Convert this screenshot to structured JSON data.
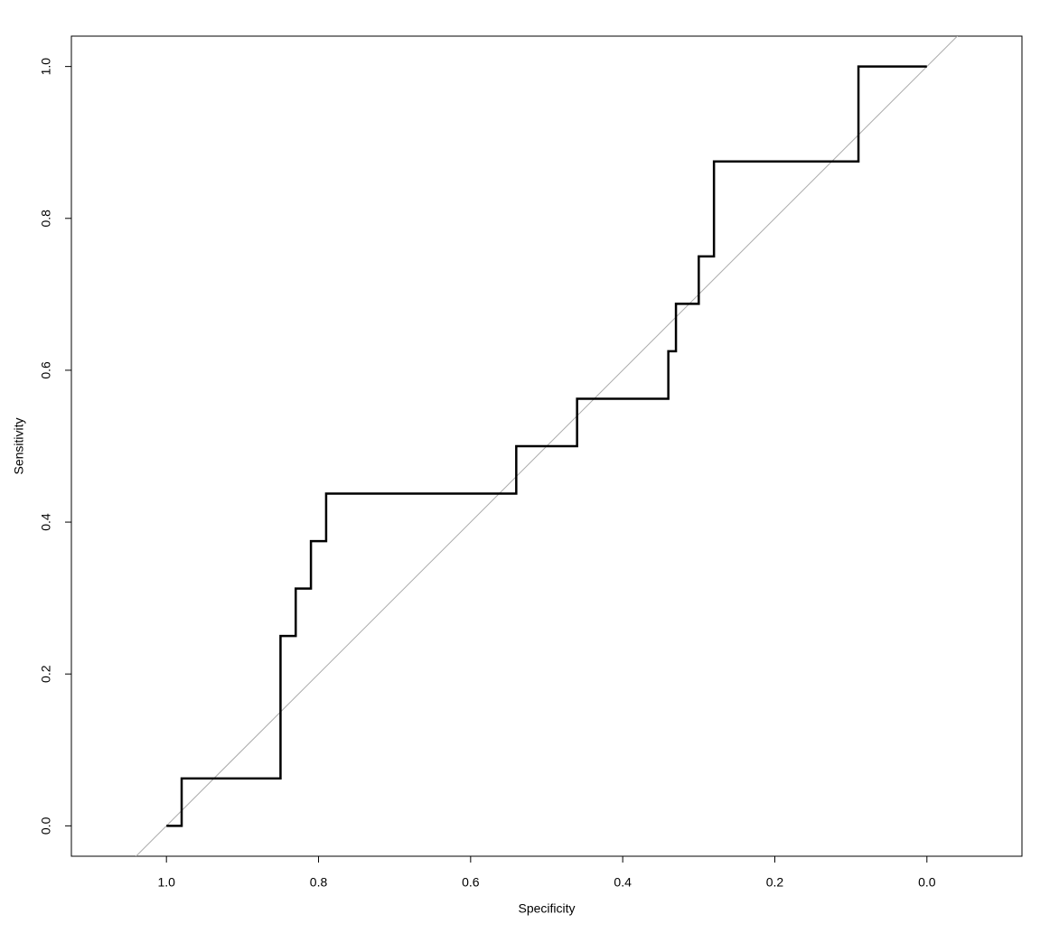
{
  "chart_data": {
    "type": "line",
    "x_label": "Specificity",
    "y_label": "Sensitivity",
    "x": [
      1.0,
      0.98,
      0.98,
      0.85,
      0.85,
      0.83,
      0.83,
      0.81,
      0.81,
      0.79,
      0.79,
      0.54,
      0.54,
      0.46,
      0.46,
      0.34,
      0.34,
      0.33,
      0.33,
      0.3,
      0.3,
      0.28,
      0.28,
      0.09,
      0.09,
      0.0
    ],
    "series": [
      {
        "color": "#000000",
        "values": [
          0,
          0,
          0.0625,
          0.0625,
          0.25,
          0.25,
          0.3125,
          0.3125,
          0.375,
          0.375,
          0.4375,
          0.4375,
          0.5,
          0.5,
          0.5625,
          0.5625,
          0.625,
          0.625,
          0.6875,
          0.6875,
          0.75,
          0.75,
          0.875,
          0.875,
          1.0,
          1.0
        ]
      }
    ],
    "xlim": [
      1.125,
      -0.125
    ],
    "ylim": [
      -0.04,
      1.04
    ],
    "xticks": [
      {
        "value": 1.0,
        "label": "1.0"
      },
      0.8,
      0.6,
      0.4,
      0.2,
      {
        "value": 0.0,
        "label": "0.0"
      }
    ],
    "yticks": [
      {
        "value": 0.0,
        "label": "0.0"
      },
      0.2,
      0.4,
      0.6,
      0.8,
      {
        "value": 1.0,
        "label": "1.0"
      }
    ],
    "diagonal_color": "#aaaaaa",
    "grid": false
  }
}
